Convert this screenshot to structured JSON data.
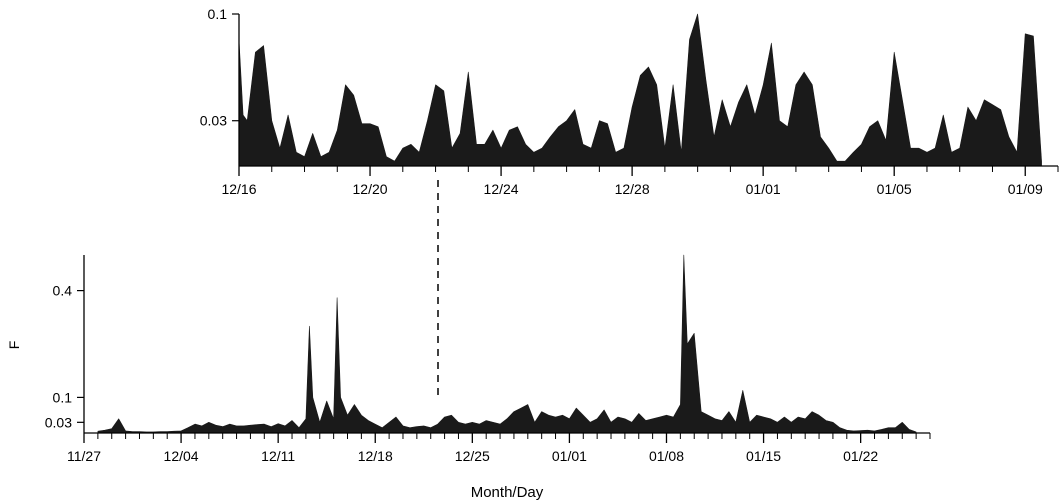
{
  "chart_data": [
    {
      "id": "top",
      "type": "area",
      "xlabel": "",
      "ylabel": "",
      "yscale": "log",
      "ylim": [
        0.018,
        0.1
      ],
      "x_range": [
        "12/16",
        "01/10"
      ],
      "y_ticks": [
        {
          "value": 0.1,
          "label": "0.1"
        },
        {
          "value": 0.03,
          "label": "0.03"
        }
      ],
      "x_ticks": [
        {
          "date": "12/16",
          "label": "12/16"
        },
        {
          "date": "12/20",
          "label": "12/20"
        },
        {
          "date": "12/24",
          "label": "12/24"
        },
        {
          "date": "12/28",
          "label": "12/28"
        },
        {
          "date": "01/01",
          "label": "01/01"
        },
        {
          "date": "01/05",
          "label": "01/05"
        },
        {
          "date": "01/09",
          "label": "01/09"
        }
      ],
      "color": "#1a1a1a",
      "series": [
        {
          "x": [
            "12/16 00h",
            "12/16 03h",
            "12/16 06h",
            "12/16 12h",
            "12/16 18h",
            "12/17 00h",
            "12/17 06h",
            "12/17 12h",
            "12/17 18h",
            "12/18 00h",
            "12/18 06h",
            "12/18 12h",
            "12/18 18h",
            "12/19 00h",
            "12/19 06h",
            "12/19 12h",
            "12/19 18h",
            "12/20 00h",
            "12/20 06h",
            "12/20 12h",
            "12/20 18h",
            "12/21 00h",
            "12/21 06h",
            "12/21 12h",
            "12/21 18h",
            "12/22 00h",
            "12/22 06h",
            "12/22 12h",
            "12/22 18h",
            "12/23 00h",
            "12/23 06h",
            "12/23 12h",
            "12/23 18h",
            "12/24 00h",
            "12/24 06h",
            "12/24 12h",
            "12/24 18h",
            "12/25 00h",
            "12/25 06h",
            "12/25 12h",
            "12/25 18h",
            "12/26 00h",
            "12/26 06h",
            "12/26 12h",
            "12/26 18h",
            "12/27 00h",
            "12/27 06h",
            "12/27 12h",
            "12/27 18h",
            "12/28 00h",
            "12/28 06h",
            "12/28 12h",
            "12/28 18h",
            "12/29 00h",
            "12/29 06h",
            "12/29 12h",
            "12/29 18h",
            "12/30 00h",
            "12/30 06h",
            "12/30 12h",
            "12/30 18h",
            "12/31 00h",
            "12/31 06h",
            "12/31 12h",
            "12/31 18h",
            "01/01 00h",
            "01/01 06h",
            "01/01 12h",
            "01/01 18h",
            "01/02 00h",
            "01/02 06h",
            "01/02 12h",
            "01/02 18h",
            "01/03 00h",
            "01/03 06h",
            "01/03 12h",
            "01/03 18h",
            "01/04 00h",
            "01/04 06h",
            "01/04 12h",
            "01/04 18h",
            "01/05 00h",
            "01/05 06h",
            "01/05 12h",
            "01/05 18h",
            "01/06 00h",
            "01/06 06h",
            "01/06 12h",
            "01/06 18h",
            "01/07 00h",
            "01/07 06h",
            "01/07 12h",
            "01/07 18h",
            "01/08 00h",
            "01/08 06h",
            "01/08 12h",
            "01/08 18h",
            "01/09 00h",
            "01/09 06h",
            "01/09 12h"
          ],
          "values": [
            0.075,
            0.032,
            0.03,
            0.065,
            0.07,
            0.03,
            0.022,
            0.032,
            0.021,
            0.02,
            0.026,
            0.02,
            0.021,
            0.027,
            0.045,
            0.04,
            0.029,
            0.029,
            0.028,
            0.02,
            0.019,
            0.022,
            0.023,
            0.021,
            0.03,
            0.045,
            0.042,
            0.022,
            0.026,
            0.052,
            0.023,
            0.023,
            0.027,
            0.022,
            0.027,
            0.028,
            0.023,
            0.021,
            0.022,
            0.025,
            0.028,
            0.03,
            0.034,
            0.023,
            0.022,
            0.03,
            0.029,
            0.021,
            0.022,
            0.035,
            0.05,
            0.055,
            0.045,
            0.022,
            0.045,
            0.021,
            0.075,
            0.1,
            0.048,
            0.025,
            0.038,
            0.028,
            0.037,
            0.045,
            0.032,
            0.045,
            0.072,
            0.03,
            0.028,
            0.045,
            0.052,
            0.045,
            0.025,
            0.022,
            0.019,
            0.019,
            0.021,
            0.023,
            0.028,
            0.03,
            0.024,
            0.065,
            0.038,
            0.022,
            0.022,
            0.021,
            0.022,
            0.032,
            0.021,
            0.022,
            0.035,
            0.03,
            0.038,
            0.036,
            0.034,
            0.025,
            0.021,
            0.08,
            0.078,
            0.019
          ]
        }
      ]
    },
    {
      "id": "bottom",
      "type": "area",
      "xlabel": "Month/Day",
      "ylabel": "F",
      "yscale": "linear",
      "ylim": [
        0,
        0.5
      ],
      "x_range": [
        "11/27",
        "01/27"
      ],
      "y_ticks": [
        {
          "value": 0.4,
          "label": "0.4"
        },
        {
          "value": 0.1,
          "label": "0.1"
        },
        {
          "value": 0.03,
          "label": "0.03"
        }
      ],
      "x_ticks": [
        {
          "date": "11/27",
          "label": "11/27"
        },
        {
          "date": "12/04",
          "label": "12/04"
        },
        {
          "date": "12/11",
          "label": "12/11"
        },
        {
          "date": "12/18",
          "label": "12/18"
        },
        {
          "date": "12/25",
          "label": "12/25"
        },
        {
          "date": "01/01",
          "label": "01/01"
        },
        {
          "date": "01/08",
          "label": "01/08"
        },
        {
          "date": "01/15",
          "label": "01/15"
        },
        {
          "date": "01/22",
          "label": "01/22"
        }
      ],
      "color": "#1a1a1a",
      "series": [
        {
          "x": [
            "11/28 00h",
            "11/28 12h",
            "11/29 00h",
            "11/29 12h",
            "11/30 00h",
            "11/30 12h",
            "12/01 00h",
            "12/01 12h",
            "12/02 00h",
            "12/02 12h",
            "12/03 00h",
            "12/03 12h",
            "12/04 00h",
            "12/04 12h",
            "12/05 00h",
            "12/05 12h",
            "12/06 00h",
            "12/06 12h",
            "12/07 00h",
            "12/07 12h",
            "12/08 00h",
            "12/08 12h",
            "12/09 00h",
            "12/09 12h",
            "12/10 00h",
            "12/10 12h",
            "12/11 00h",
            "12/11 12h",
            "12/12 00h",
            "12/12 12h",
            "12/13 00h",
            "12/13 06h",
            "12/13 12h",
            "12/14 00h",
            "12/14 12h",
            "12/15 00h",
            "12/15 06h",
            "12/15 12h",
            "12/16 00h",
            "12/16 12h",
            "12/17 00h",
            "12/17 12h",
            "12/18 00h",
            "12/18 12h",
            "12/19 00h",
            "12/19 12h",
            "12/20 00h",
            "12/20 12h",
            "12/21 00h",
            "12/21 12h",
            "12/22 00h",
            "12/22 12h",
            "12/23 00h",
            "12/23 12h",
            "12/24 00h",
            "12/24 12h",
            "12/25 00h",
            "12/25 12h",
            "12/26 00h",
            "12/26 12h",
            "12/27 00h",
            "12/27 12h",
            "12/28 00h",
            "12/28 12h",
            "12/29 00h",
            "12/29 12h",
            "12/30 00h",
            "12/30 12h",
            "12/31 00h",
            "12/31 12h",
            "01/01 00h",
            "01/01 12h",
            "01/02 00h",
            "01/02 12h",
            "01/03 00h",
            "01/03 12h",
            "01/04 00h",
            "01/04 12h",
            "01/05 00h",
            "01/05 12h",
            "01/06 00h",
            "01/06 12h",
            "01/07 00h",
            "01/07 12h",
            "01/08 00h",
            "01/08 12h",
            "01/09 00h",
            "01/09 06h",
            "01/09 12h",
            "01/10 00h",
            "01/10 12h",
            "01/11 00h",
            "01/11 12h",
            "01/12 00h",
            "01/12 12h",
            "01/13 00h",
            "01/13 12h",
            "01/14 00h",
            "01/14 12h",
            "01/15 00h",
            "01/15 12h",
            "01/16 00h",
            "01/16 12h",
            "01/17 00h",
            "01/17 12h",
            "01/18 00h",
            "01/18 12h",
            "01/19 00h",
            "01/19 12h",
            "01/20 00h",
            "01/20 12h",
            "01/21 00h",
            "01/21 12h",
            "01/22 00h",
            "01/22 12h",
            "01/23 00h",
            "01/23 12h",
            "01/24 00h",
            "01/24 12h",
            "01/25 00h",
            "01/25 12h",
            "01/26 00h"
          ],
          "values": [
            0.005,
            0.008,
            0.012,
            0.04,
            0.006,
            0.004,
            0.004,
            0.003,
            0.003,
            0.004,
            0.004,
            0.005,
            0.006,
            0.015,
            0.025,
            0.02,
            0.03,
            0.022,
            0.018,
            0.025,
            0.02,
            0.02,
            0.022,
            0.024,
            0.025,
            0.018,
            0.026,
            0.02,
            0.035,
            0.015,
            0.04,
            0.3,
            0.1,
            0.03,
            0.09,
            0.04,
            0.38,
            0.1,
            0.05,
            0.08,
            0.05,
            0.035,
            0.025,
            0.015,
            0.03,
            0.045,
            0.02,
            0.015,
            0.018,
            0.02,
            0.015,
            0.025,
            0.045,
            0.05,
            0.03,
            0.025,
            0.03,
            0.025,
            0.035,
            0.03,
            0.025,
            0.04,
            0.06,
            0.07,
            0.08,
            0.03,
            0.06,
            0.05,
            0.045,
            0.05,
            0.04,
            0.07,
            0.05,
            0.03,
            0.04,
            0.065,
            0.03,
            0.045,
            0.04,
            0.03,
            0.055,
            0.035,
            0.04,
            0.045,
            0.05,
            0.045,
            0.08,
            0.5,
            0.25,
            0.28,
            0.06,
            0.05,
            0.04,
            0.035,
            0.06,
            0.03,
            0.12,
            0.03,
            0.05,
            0.045,
            0.04,
            0.03,
            0.045,
            0.03,
            0.045,
            0.04,
            0.06,
            0.05,
            0.035,
            0.03,
            0.015,
            0.008,
            0.006,
            0.007,
            0.008,
            0.006,
            0.01,
            0.015,
            0.015,
            0.03,
            0.01,
            0.003
          ]
        }
      ]
    }
  ]
}
